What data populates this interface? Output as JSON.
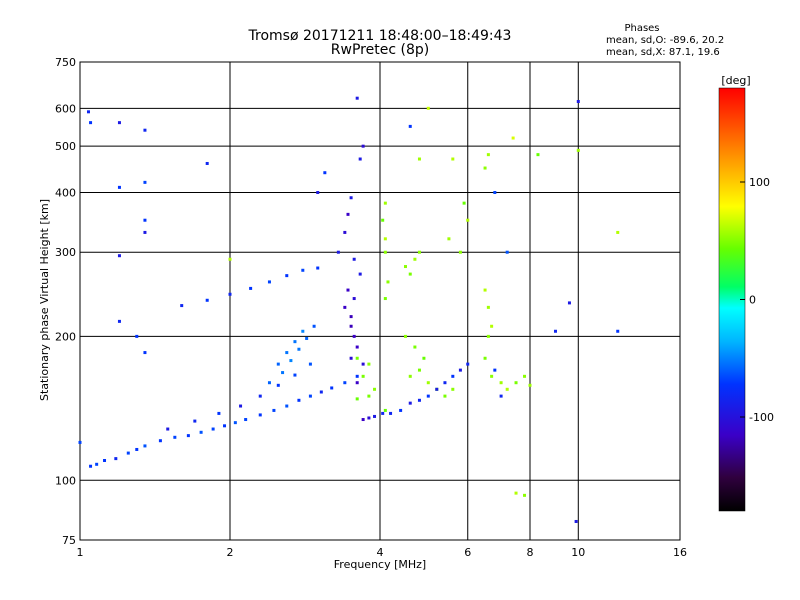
{
  "chart_data": {
    "type": "scatter",
    "title": "Tromsø 20171211 18:48:00–18:49:43",
    "subtitle": "RwPretec (8p)",
    "xlabel": "Frequency [MHz]",
    "ylabel": "Stationary phase Virtual Height [km]",
    "x_scale": "log",
    "y_scale": "log",
    "xlim": [
      1,
      16
    ],
    "ylim": [
      75,
      750
    ],
    "x_ticks": [
      "1",
      "2",
      "4",
      "6",
      "8",
      "10",
      "16"
    ],
    "y_ticks": [
      "75",
      "100",
      "200",
      "300",
      "400",
      "500",
      "600",
      "750"
    ],
    "grid": true,
    "legend": {
      "title": "Phases",
      "lines": [
        "mean, sd,O: -89.6, 20.2",
        "mean, sd,X:  87.1, 19.6"
      ],
      "position": "top-right"
    },
    "colorbar": {
      "label": "[deg]",
      "range": [
        -180,
        180
      ],
      "ticks": [
        "100",
        "0",
        "-100"
      ],
      "colormap": "rainbow"
    },
    "series": [
      {
        "points": [
          [
            1.05,
            107,
            -100
          ],
          [
            1.08,
            108,
            -95
          ],
          [
            1.12,
            110,
            -100
          ],
          [
            1.18,
            111,
            -105
          ],
          [
            1.25,
            114,
            -95
          ],
          [
            1.3,
            116,
            -100
          ],
          [
            1.35,
            118,
            -90
          ],
          [
            1.45,
            121,
            -100
          ],
          [
            1.55,
            123,
            -95
          ],
          [
            1.65,
            124,
            -100
          ],
          [
            1.75,
            126,
            -90
          ],
          [
            1.85,
            128,
            -95
          ],
          [
            1.95,
            130,
            -100
          ],
          [
            2.05,
            132,
            -90
          ],
          [
            2.15,
            134,
            -95
          ],
          [
            2.3,
            137,
            -100
          ],
          [
            2.45,
            140,
            -95
          ],
          [
            2.6,
            143,
            -90
          ],
          [
            2.75,
            147,
            -100
          ],
          [
            2.9,
            150,
            -95
          ],
          [
            3.05,
            153,
            -105
          ],
          [
            3.2,
            156,
            -100
          ],
          [
            3.4,
            160,
            -95
          ],
          [
            3.6,
            165,
            -100
          ],
          [
            1.5,
            128,
            -110
          ],
          [
            1.7,
            133,
            -105
          ],
          [
            1.9,
            138,
            -100
          ],
          [
            2.1,
            143,
            -110
          ],
          [
            2.3,
            150,
            -105
          ],
          [
            2.5,
            158,
            -100
          ],
          [
            2.7,
            166,
            -95
          ],
          [
            2.9,
            175,
            -90
          ],
          [
            2.5,
            175,
            -85
          ],
          [
            2.6,
            185,
            -80
          ],
          [
            2.7,
            195,
            -80
          ],
          [
            2.8,
            205,
            -75
          ],
          [
            2.4,
            160,
            -85
          ],
          [
            2.55,
            168,
            -80
          ],
          [
            2.65,
            178,
            -75
          ],
          [
            2.75,
            188,
            -80
          ],
          [
            2.85,
            198,
            -85
          ],
          [
            2.95,
            210,
            -90
          ],
          [
            1.6,
            232,
            -105
          ],
          [
            1.8,
            238,
            -100
          ],
          [
            2.0,
            245,
            -105
          ],
          [
            2.2,
            252,
            -100
          ],
          [
            2.4,
            260,
            -95
          ],
          [
            2.6,
            268,
            -100
          ],
          [
            2.8,
            275,
            -95
          ],
          [
            3.0,
            278,
            -100
          ],
          [
            3.3,
            300,
            -110
          ],
          [
            3.4,
            330,
            -115
          ],
          [
            3.45,
            360,
            -120
          ],
          [
            3.5,
            390,
            -110
          ],
          [
            3.45,
            250,
            -120
          ],
          [
            3.5,
            220,
            -125
          ],
          [
            3.55,
            200,
            -120
          ],
          [
            3.5,
            180,
            -115
          ],
          [
            3.6,
            160,
            -120
          ],
          [
            3.65,
            270,
            -110
          ],
          [
            3.4,
            230,
            -120
          ],
          [
            3.55,
            240,
            -115
          ],
          [
            3.5,
            210,
            -125
          ],
          [
            3.6,
            190,
            -120
          ],
          [
            3.7,
            175,
            -115
          ],
          [
            3.55,
            290,
            -110
          ],
          [
            3.7,
            500,
            -115
          ],
          [
            3.65,
            470,
            -110
          ],
          [
            3.8,
            135,
            -115
          ],
          [
            3.9,
            136,
            -110
          ],
          [
            3.7,
            134,
            -120
          ],
          [
            4.05,
            138,
            -105
          ],
          [
            4.1,
            140,
            40
          ],
          [
            3.6,
            148,
            40
          ],
          [
            3.8,
            150,
            45
          ],
          [
            3.9,
            155,
            50
          ],
          [
            3.7,
            165,
            45
          ],
          [
            3.8,
            175,
            50
          ],
          [
            3.6,
            180,
            45
          ],
          [
            4.1,
            300,
            50
          ],
          [
            4.1,
            320,
            60
          ],
          [
            4.05,
            350,
            40
          ],
          [
            4.1,
            380,
            55
          ],
          [
            4.15,
            260,
            50
          ],
          [
            4.1,
            240,
            45
          ],
          [
            4.5,
            280,
            50
          ],
          [
            4.6,
            270,
            45
          ],
          [
            4.7,
            290,
            55
          ],
          [
            4.8,
            300,
            50
          ],
          [
            4.5,
            200,
            50
          ],
          [
            4.7,
            190,
            45
          ],
          [
            4.9,
            180,
            40
          ],
          [
            4.6,
            165,
            50
          ],
          [
            4.8,
            170,
            45
          ],
          [
            5.0,
            160,
            55
          ],
          [
            5.2,
            155,
            40
          ],
          [
            5.4,
            150,
            45
          ],
          [
            5.6,
            155,
            50
          ],
          [
            4.6,
            145,
            -110
          ],
          [
            4.8,
            147,
            -105
          ],
          [
            5.0,
            150,
            -100
          ],
          [
            5.2,
            155,
            -110
          ],
          [
            5.4,
            160,
            -105
          ],
          [
            5.6,
            165,
            -100
          ],
          [
            5.8,
            170,
            -110
          ],
          [
            6.0,
            175,
            -105
          ],
          [
            4.4,
            140,
            -100
          ],
          [
            4.2,
            138,
            -105
          ],
          [
            5.8,
            300,
            50
          ],
          [
            6.0,
            350,
            60
          ],
          [
            5.9,
            380,
            40
          ],
          [
            5.5,
            320,
            55
          ],
          [
            6.5,
            250,
            60
          ],
          [
            6.6,
            230,
            55
          ],
          [
            6.7,
            210,
            60
          ],
          [
            6.6,
            200,
            50
          ],
          [
            6.5,
            180,
            45
          ],
          [
            6.7,
            165,
            50
          ],
          [
            7.0,
            160,
            55
          ],
          [
            7.2,
            155,
            60
          ],
          [
            7.5,
            160,
            45
          ],
          [
            7.8,
            165,
            50
          ],
          [
            8.0,
            158,
            55
          ],
          [
            6.8,
            170,
            -100
          ],
          [
            7.0,
            150,
            -105
          ],
          [
            6.5,
            450,
            50
          ],
          [
            6.6,
            480,
            55
          ],
          [
            7.4,
            520,
            70
          ],
          [
            8.3,
            480,
            40
          ],
          [
            9.0,
            205,
            -105
          ],
          [
            9.6,
            235,
            -110
          ],
          [
            10.0,
            620,
            -110
          ],
          [
            1.04,
            590,
            -105
          ],
          [
            1.05,
            560,
            -100
          ],
          [
            1.2,
            560,
            -110
          ],
          [
            1.35,
            540,
            -105
          ],
          [
            1.2,
            410,
            -100
          ],
          [
            1.35,
            420,
            -95
          ],
          [
            1.35,
            330,
            -110
          ],
          [
            1.35,
            350,
            -100
          ],
          [
            1.2,
            295,
            -110
          ],
          [
            1.2,
            215,
            -105
          ],
          [
            1.35,
            185,
            -100
          ],
          [
            1.8,
            460,
            -105
          ],
          [
            3.0,
            400,
            -110
          ],
          [
            3.1,
            440,
            -100
          ],
          [
            3.6,
            630,
            -110
          ],
          [
            4.6,
            550,
            -100
          ],
          [
            9.9,
            82,
            -110
          ],
          [
            7.5,
            94,
            60
          ],
          [
            7.8,
            93,
            50
          ],
          [
            4.8,
            470,
            55
          ],
          [
            5.6,
            470,
            60
          ],
          [
            5.0,
            600,
            65
          ],
          [
            12,
            330,
            60
          ],
          [
            12,
            205,
            -100
          ],
          [
            10,
            490,
            55
          ],
          [
            6.8,
            400,
            -95
          ],
          [
            7.2,
            300,
            -90
          ],
          [
            1.0,
            120,
            -95
          ],
          [
            1.3,
            200,
            -100
          ],
          [
            2.0,
            290,
            60
          ]
        ]
      }
    ]
  }
}
